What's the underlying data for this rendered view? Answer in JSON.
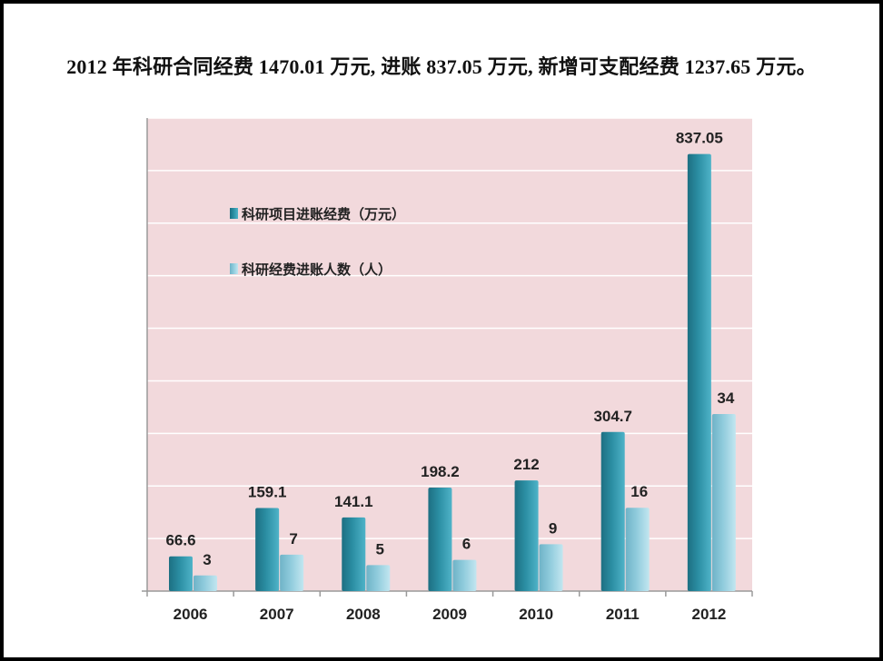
{
  "headline": "2012 年科研合同经费 1470.01 万元, 进账 837.05 万元, 新增可支配经费 1237.65 万元。",
  "colors": {
    "plot_background": "#f2d9dc",
    "grid": "#ffffff",
    "axis": "#9a9a9a",
    "series_funding": "#2b8ea3",
    "series_people": "#8fcbdc"
  },
  "chart_data": {
    "type": "bar",
    "categories": [
      "2006",
      "2007",
      "2008",
      "2009",
      "2010",
      "2011",
      "2012"
    ],
    "series": [
      {
        "name": "科研项目进账经费（万元）",
        "values": [
          66.6,
          159.1,
          141.1,
          198.2,
          212,
          304.7,
          837.05
        ]
      },
      {
        "name": "科研经费进账人数（人）",
        "values": [
          3,
          7,
          5,
          6,
          9,
          16,
          34
        ]
      }
    ],
    "data_labels": [
      [
        "66.6",
        "159.1",
        "141.1",
        "198.2",
        "212",
        "304.7",
        "837.05"
      ],
      [
        "3",
        "7",
        "5",
        "6",
        "9",
        "16",
        "34"
      ]
    ],
    "secondary_axis_series": [
      1
    ],
    "grid": true,
    "legend_position": "upper-left inside plot"
  }
}
